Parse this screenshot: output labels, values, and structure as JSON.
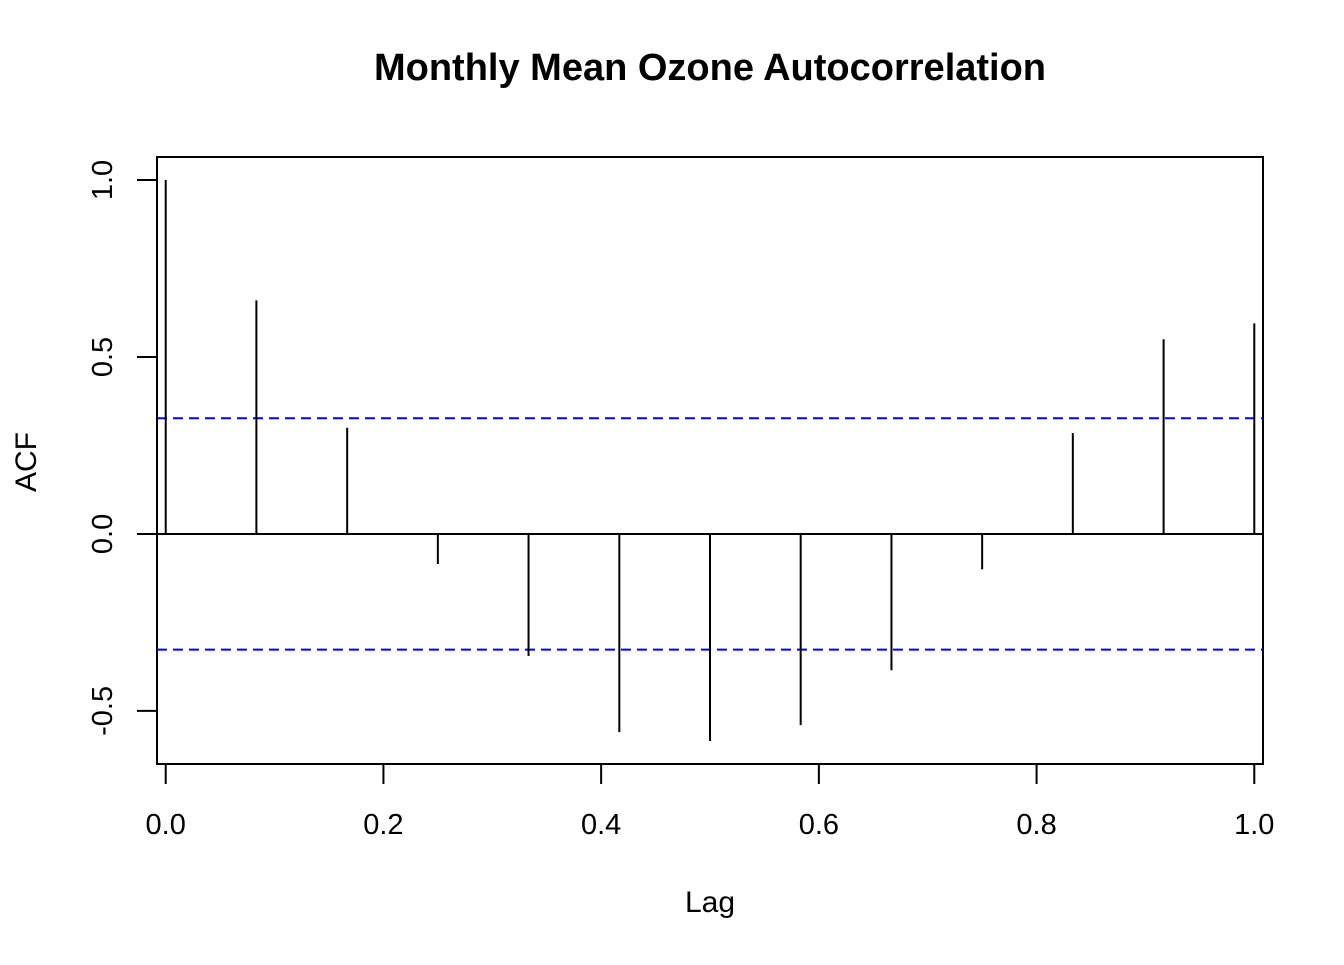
{
  "chart_data": {
    "type": "bar",
    "title": "Monthly Mean Ozone Autocorrelation",
    "xlabel": "Lag",
    "ylabel": "ACF",
    "x_ticks": [
      "0.0",
      "0.2",
      "0.4",
      "0.6",
      "0.8",
      "1.0"
    ],
    "y_ticks": [
      "-0.5",
      "0.0",
      "0.5",
      "1.0"
    ],
    "xlim": [
      -0.008,
      1.008
    ],
    "ylim": [
      -0.65,
      1.065
    ],
    "grid": false,
    "series": [
      {
        "x": [
          0.0,
          0.0833,
          0.1667,
          0.25,
          0.3333,
          0.4167,
          0.5,
          0.5833,
          0.6667,
          0.75,
          0.8333,
          0.9167,
          1.0
        ],
        "values": [
          1.0,
          0.66,
          0.3,
          -0.085,
          -0.345,
          -0.56,
          -0.585,
          -0.54,
          -0.385,
          -0.1,
          0.285,
          0.55,
          0.595
        ]
      }
    ],
    "confidence_bound": 0.327,
    "colors": {
      "bars": "#000000",
      "confidence_lines": "#0000ff",
      "zero_line": "#000000"
    }
  }
}
